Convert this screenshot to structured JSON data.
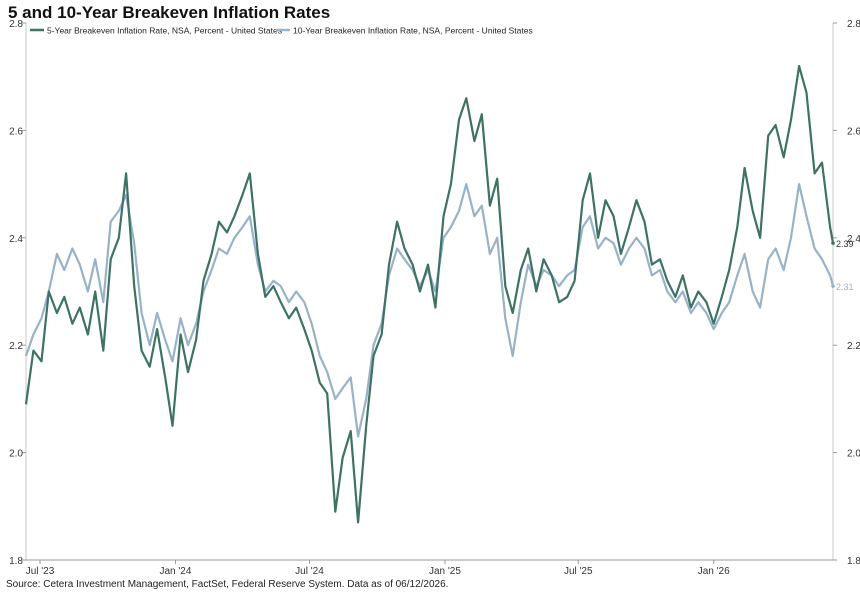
{
  "title": "5 and 10-Year Breakeven Inflation Rates",
  "source": "Source: Cetera Investment Management, FactSet, Federal Reserve System. Data as of 06/12/2026.",
  "chart_data": {
    "type": "line",
    "title": "5 and 10-Year Breakeven Inflation Rates",
    "xlabel": "",
    "ylabel": "",
    "ylim": [
      1.8,
      2.8
    ],
    "yticks": [
      1.8,
      2.0,
      2.2,
      2.4,
      2.6,
      2.8
    ],
    "ytick_labels": [
      "1.8",
      "2.0",
      "2.2",
      "2.4",
      "2.6",
      "2.8"
    ],
    "xlim": [
      "2023-06-12",
      "2026-06-12"
    ],
    "xticks": [
      "2023-07-01",
      "2024-01-01",
      "2024-07-01",
      "2025-01-01",
      "2025-07-01",
      "2026-01-01"
    ],
    "xtick_labels": [
      "Jul '23",
      "Jan '24",
      "Jul '24",
      "Jan '25",
      "Jul '25",
      "Jan '26"
    ],
    "grid": false,
    "legend_position": "top-left",
    "colors": {
      "series_5y": "#3d7265",
      "series_10y": "#98b2c8"
    },
    "end_labels": [
      "2.39",
      "2.31"
    ],
    "series": [
      {
        "name": "5-Year Breakeven Inflation Rate, NSA, Percent - United States",
        "x": [
          "2023-06-12",
          "2023-06-22",
          "2023-07-03",
          "2023-07-13",
          "2023-07-24",
          "2023-08-03",
          "2023-08-14",
          "2023-08-24",
          "2023-09-04",
          "2023-09-14",
          "2023-09-25",
          "2023-10-05",
          "2023-10-16",
          "2023-10-26",
          "2023-11-06",
          "2023-11-16",
          "2023-11-27",
          "2023-12-07",
          "2023-12-18",
          "2023-12-28",
          "2024-01-08",
          "2024-01-18",
          "2024-01-29",
          "2024-02-08",
          "2024-02-19",
          "2024-02-29",
          "2024-03-11",
          "2024-03-21",
          "2024-04-01",
          "2024-04-11",
          "2024-04-22",
          "2024-05-02",
          "2024-05-13",
          "2024-05-23",
          "2024-06-03",
          "2024-06-13",
          "2024-06-24",
          "2024-07-04",
          "2024-07-15",
          "2024-07-25",
          "2024-08-05",
          "2024-08-15",
          "2024-08-26",
          "2024-09-05",
          "2024-09-16",
          "2024-09-26",
          "2024-10-07",
          "2024-10-17",
          "2024-10-28",
          "2024-11-07",
          "2024-11-18",
          "2024-11-28",
          "2024-12-09",
          "2024-12-19",
          "2024-12-30",
          "2025-01-09",
          "2025-01-20",
          "2025-01-30",
          "2025-02-10",
          "2025-02-20",
          "2025-03-03",
          "2025-03-13",
          "2025-03-24",
          "2025-04-03",
          "2025-04-14",
          "2025-04-24",
          "2025-05-05",
          "2025-05-15",
          "2025-05-26",
          "2025-06-05",
          "2025-06-16",
          "2025-06-26",
          "2025-07-07",
          "2025-07-17",
          "2025-07-28",
          "2025-08-07",
          "2025-08-18",
          "2025-08-28",
          "2025-09-08",
          "2025-09-18",
          "2025-09-29",
          "2025-10-09",
          "2025-10-20",
          "2025-10-30",
          "2025-11-10",
          "2025-11-20",
          "2025-12-01",
          "2025-12-11",
          "2025-12-22",
          "2026-01-01",
          "2026-01-12",
          "2026-01-22",
          "2026-02-02",
          "2026-02-12",
          "2026-02-23",
          "2026-03-05",
          "2026-03-16",
          "2026-03-26",
          "2026-04-06",
          "2026-04-16",
          "2026-04-27",
          "2026-05-07",
          "2026-05-18",
          "2026-05-28",
          "2026-06-08",
          "2026-06-12"
        ],
        "values": [
          2.09,
          2.19,
          2.17,
          2.3,
          2.26,
          2.29,
          2.24,
          2.27,
          2.22,
          2.3,
          2.19,
          2.36,
          2.4,
          2.52,
          2.31,
          2.19,
          2.16,
          2.23,
          2.14,
          2.05,
          2.22,
          2.15,
          2.21,
          2.32,
          2.37,
          2.43,
          2.41,
          2.44,
          2.48,
          2.52,
          2.37,
          2.29,
          2.31,
          2.28,
          2.25,
          2.27,
          2.23,
          2.19,
          2.13,
          2.11,
          1.89,
          1.99,
          2.04,
          1.87,
          2.05,
          2.18,
          2.22,
          2.35,
          2.43,
          2.38,
          2.35,
          2.3,
          2.35,
          2.27,
          2.44,
          2.5,
          2.62,
          2.66,
          2.58,
          2.63,
          2.46,
          2.51,
          2.31,
          2.26,
          2.34,
          2.38,
          2.3,
          2.36,
          2.33,
          2.28,
          2.29,
          2.32,
          2.47,
          2.52,
          2.4,
          2.47,
          2.44,
          2.37,
          2.42,
          2.47,
          2.43,
          2.35,
          2.36,
          2.32,
          2.29,
          2.33,
          2.27,
          2.3,
          2.28,
          2.24,
          2.29,
          2.34,
          2.42,
          2.53,
          2.45,
          2.4,
          2.59,
          2.61,
          2.55,
          2.62,
          2.72,
          2.67,
          2.52,
          2.54,
          2.42,
          2.39
        ]
      },
      {
        "name": "10-Year Breakeven Inflation Rate, NSA, Percent - United States",
        "x": [
          "2023-06-12",
          "2023-06-22",
          "2023-07-03",
          "2023-07-13",
          "2023-07-24",
          "2023-08-03",
          "2023-08-14",
          "2023-08-24",
          "2023-09-04",
          "2023-09-14",
          "2023-09-25",
          "2023-10-05",
          "2023-10-16",
          "2023-10-26",
          "2023-11-06",
          "2023-11-16",
          "2023-11-27",
          "2023-12-07",
          "2023-12-18",
          "2023-12-28",
          "2024-01-08",
          "2024-01-18",
          "2024-01-29",
          "2024-02-08",
          "2024-02-19",
          "2024-02-29",
          "2024-03-11",
          "2024-03-21",
          "2024-04-01",
          "2024-04-11",
          "2024-04-22",
          "2024-05-02",
          "2024-05-13",
          "2024-05-23",
          "2024-06-03",
          "2024-06-13",
          "2024-06-24",
          "2024-07-04",
          "2024-07-15",
          "2024-07-25",
          "2024-08-05",
          "2024-08-15",
          "2024-08-26",
          "2024-09-05",
          "2024-09-16",
          "2024-09-26",
          "2024-10-07",
          "2024-10-17",
          "2024-10-28",
          "2024-11-07",
          "2024-11-18",
          "2024-11-28",
          "2024-12-09",
          "2024-12-19",
          "2024-12-30",
          "2025-01-09",
          "2025-01-20",
          "2025-01-30",
          "2025-02-10",
          "2025-02-20",
          "2025-03-03",
          "2025-03-13",
          "2025-03-24",
          "2025-04-03",
          "2025-04-14",
          "2025-04-24",
          "2025-05-05",
          "2025-05-15",
          "2025-05-26",
          "2025-06-05",
          "2025-06-16",
          "2025-06-26",
          "2025-07-07",
          "2025-07-17",
          "2025-07-28",
          "2025-08-07",
          "2025-08-18",
          "2025-08-28",
          "2025-09-08",
          "2025-09-18",
          "2025-09-29",
          "2025-10-09",
          "2025-10-20",
          "2025-10-30",
          "2025-11-10",
          "2025-11-20",
          "2025-12-01",
          "2025-12-11",
          "2025-12-22",
          "2026-01-01",
          "2026-01-12",
          "2026-01-22",
          "2026-02-02",
          "2026-02-12",
          "2026-02-23",
          "2026-03-05",
          "2026-03-16",
          "2026-03-26",
          "2026-04-06",
          "2026-04-16",
          "2026-04-27",
          "2026-05-07",
          "2026-05-18",
          "2026-05-28",
          "2026-06-08",
          "2026-06-12"
        ],
        "values": [
          2.18,
          2.22,
          2.25,
          2.3,
          2.37,
          2.34,
          2.38,
          2.35,
          2.3,
          2.36,
          2.28,
          2.43,
          2.45,
          2.48,
          2.39,
          2.26,
          2.2,
          2.26,
          2.21,
          2.17,
          2.25,
          2.2,
          2.24,
          2.3,
          2.34,
          2.38,
          2.37,
          2.4,
          2.42,
          2.44,
          2.35,
          2.3,
          2.32,
          2.31,
          2.28,
          2.3,
          2.28,
          2.24,
          2.18,
          2.15,
          2.1,
          2.12,
          2.14,
          2.03,
          2.1,
          2.2,
          2.24,
          2.33,
          2.38,
          2.36,
          2.34,
          2.31,
          2.34,
          2.3,
          2.4,
          2.42,
          2.45,
          2.5,
          2.44,
          2.46,
          2.37,
          2.4,
          2.25,
          2.18,
          2.28,
          2.35,
          2.31,
          2.34,
          2.33,
          2.31,
          2.33,
          2.34,
          2.42,
          2.44,
          2.38,
          2.4,
          2.39,
          2.35,
          2.38,
          2.4,
          2.38,
          2.33,
          2.34,
          2.3,
          2.28,
          2.3,
          2.26,
          2.28,
          2.26,
          2.23,
          2.26,
          2.28,
          2.33,
          2.37,
          2.3,
          2.27,
          2.36,
          2.38,
          2.34,
          2.4,
          2.5,
          2.44,
          2.38,
          2.36,
          2.33,
          2.31
        ]
      }
    ]
  }
}
